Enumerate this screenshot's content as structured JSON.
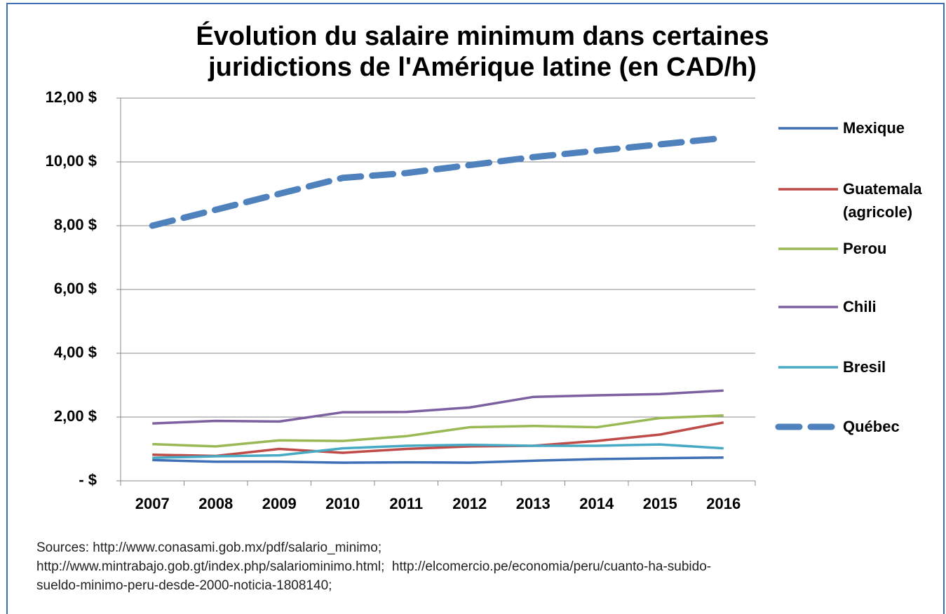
{
  "chart_data": {
    "type": "line",
    "title": "Évolution du salaire minimum dans certaines juridictions de l'Amérique latine (en CAD/h)",
    "categories": [
      "2007",
      "2008",
      "2009",
      "2010",
      "2011",
      "2012",
      "2013",
      "2014",
      "2015",
      "2016"
    ],
    "series": [
      {
        "name": "Mexique",
        "color": "#3f6fb5",
        "values": [
          0.65,
          0.6,
          0.6,
          0.57,
          0.58,
          0.57,
          0.63,
          0.68,
          0.71,
          0.73
        ]
      },
      {
        "name": "Guatemala (agricole)",
        "color": "#be4b48",
        "values": [
          0.82,
          0.78,
          1.0,
          0.88,
          1.0,
          1.08,
          1.1,
          1.25,
          1.45,
          1.83
        ]
      },
      {
        "name": "Perou",
        "color": "#98b954",
        "values": [
          1.15,
          1.08,
          1.27,
          1.25,
          1.4,
          1.68,
          1.72,
          1.68,
          1.97,
          2.05
        ]
      },
      {
        "name": "Chili",
        "color": "#7d60a0",
        "values": [
          1.8,
          1.88,
          1.86,
          2.15,
          2.16,
          2.3,
          2.63,
          2.68,
          2.72,
          2.83
        ]
      },
      {
        "name": "Bresil",
        "color": "#46aac5",
        "values": [
          0.72,
          0.77,
          0.8,
          1.02,
          1.1,
          1.13,
          1.1,
          1.1,
          1.14,
          1.02
        ]
      },
      {
        "name": "Québec",
        "color": "#4f81bd",
        "dashed": true,
        "values": [
          8.0,
          8.5,
          9.0,
          9.5,
          9.65,
          9.9,
          10.15,
          10.35,
          10.55,
          10.75
        ]
      }
    ],
    "ylim": [
      0,
      12
    ],
    "yticks": [
      {
        "value": 0,
        "label": "-  $"
      },
      {
        "value": 2,
        "label": "2,00  $"
      },
      {
        "value": 4,
        "label": "4,00  $"
      },
      {
        "value": 6,
        "label": "6,00  $"
      },
      {
        "value": 8,
        "label": "8,00  $"
      },
      {
        "value": 10,
        "label": "10,00  $"
      },
      {
        "value": 12,
        "label": "12,00  $"
      }
    ],
    "grid": true,
    "legend": "right",
    "sources": [
      "Sources: http://www.conasami.gob.mx/pdf/salario_minimo;",
      "http://www.mintrabajo.gob.gt/index.php/salariominimo.html;  http://elcomercio.pe/economia/peru/cuanto-ha-subido-",
      "sueldo-minimo-peru-desde-2000-noticia-1808140;"
    ]
  }
}
